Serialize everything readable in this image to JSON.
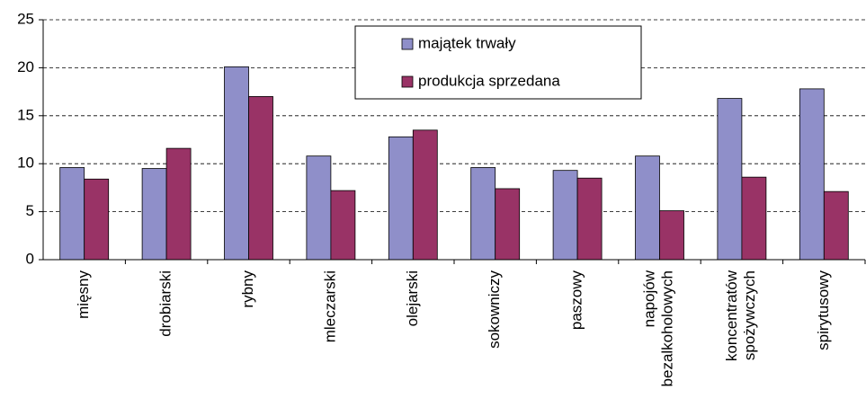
{
  "chart_data": {
    "type": "bar",
    "categories": [
      "mięsny",
      "drobiarski",
      "rybny",
      "mleczarski",
      "olejarski",
      "sokowniczy",
      "paszowy",
      "napojów bezalkoholowych",
      "koncentratów spożywczych",
      "spirytusowy"
    ],
    "series": [
      {
        "name": "majątek trwały",
        "color": "#8f8fc9",
        "values": [
          9.6,
          9.5,
          20.1,
          10.8,
          12.8,
          9.6,
          9.3,
          10.8,
          16.8,
          17.8
        ]
      },
      {
        "name": "produkcja sprzedana",
        "color": "#993366",
        "values": [
          8.4,
          11.6,
          17.0,
          7.2,
          13.5,
          7.4,
          8.5,
          5.1,
          8.6,
          7.1
        ]
      }
    ],
    "ylim": [
      0,
      25
    ],
    "yticks": [
      0,
      5,
      10,
      15,
      20,
      25
    ],
    "grid": true,
    "legend": "top"
  }
}
